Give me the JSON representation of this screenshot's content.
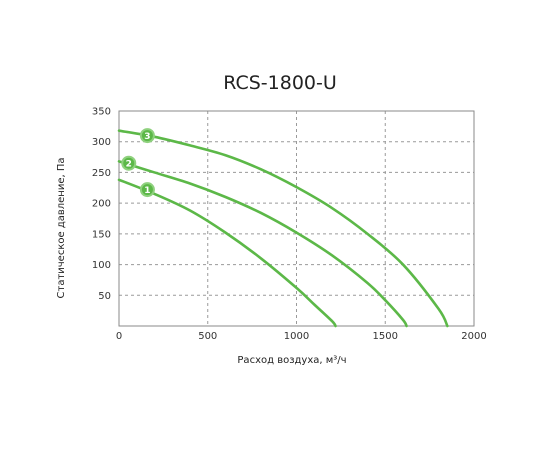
{
  "chart_data": {
    "type": "line",
    "title": "RCS-1800-U",
    "xlabel": "Расход воздуха, м³/ч",
    "ylabel": "Статическое давление, Па",
    "xlim": [
      0,
      2000
    ],
    "ylim": [
      0,
      350
    ],
    "x_ticks": [
      "0",
      "500",
      "1000",
      "1500",
      "2000"
    ],
    "y_ticks": [
      "50",
      "100",
      "150",
      "200",
      "250",
      "300",
      "350"
    ],
    "grid": true,
    "grid_style": "dashed",
    "line_color": "#5cb848",
    "series": [
      {
        "name": "1",
        "x": [
          0,
          200,
          400,
          600,
          800,
          1000,
          1100,
          1200,
          1220
        ],
        "y": [
          238,
          215,
          188,
          152,
          110,
          62,
          35,
          8,
          0
        ]
      },
      {
        "name": "2",
        "x": [
          0,
          200,
          400,
          600,
          800,
          1000,
          1200,
          1400,
          1500,
          1600,
          1620
        ],
        "y": [
          268,
          250,
          232,
          210,
          184,
          152,
          115,
          70,
          42,
          10,
          0
        ]
      },
      {
        "name": "3",
        "x": [
          0,
          200,
          400,
          600,
          800,
          1000,
          1200,
          1400,
          1600,
          1800,
          1850
        ],
        "y": [
          318,
          308,
          294,
          278,
          255,
          226,
          192,
          150,
          100,
          28,
          0
        ]
      }
    ],
    "badges": [
      {
        "label": "1",
        "x": 160,
        "y": 222
      },
      {
        "label": "2",
        "x": 55,
        "y": 265
      },
      {
        "label": "3",
        "x": 160,
        "y": 310
      }
    ]
  }
}
